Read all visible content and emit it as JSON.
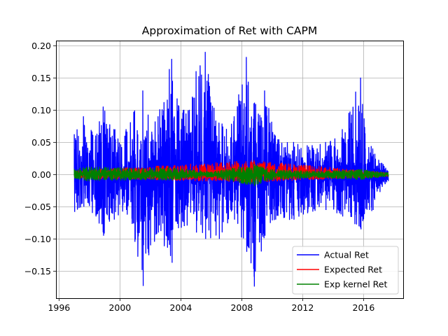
{
  "chart_data": {
    "type": "line",
    "title": "Approximation of Ret with CAPM",
    "xlabel": "",
    "ylabel": "",
    "xlim": [
      1995.8,
      2018.6
    ],
    "ylim": [
      -0.192,
      0.208
    ],
    "x_ticks": [
      1996,
      2000,
      2004,
      2008,
      2012,
      2016
    ],
    "y_ticks": [
      -0.15,
      -0.1,
      -0.05,
      0.0,
      0.05,
      0.1,
      0.15,
      0.2
    ],
    "x_tick_labels": [
      "1996",
      "2000",
      "2004",
      "2008",
      "2012",
      "2016"
    ],
    "y_tick_labels": [
      "−0.15",
      "−0.10",
      "−0.05",
      "0.00",
      "0.05",
      "0.10",
      "0.15",
      "0.20"
    ],
    "grid": true,
    "legend_position": "lower-right",
    "series": [
      {
        "name": "Actual Ret",
        "color": "#0000ff",
        "x_range": [
          1997.0,
          2017.6
        ],
        "envelope": [
          {
            "x": 1997.0,
            "lo": -0.058,
            "hi": 0.062
          },
          {
            "x": 1997.6,
            "lo": -0.05,
            "hi": 0.09
          },
          {
            "x": 1998.4,
            "lo": -0.065,
            "hi": 0.06
          },
          {
            "x": 1998.9,
            "lo": -0.095,
            "hi": 0.105
          },
          {
            "x": 1999.6,
            "lo": -0.07,
            "hi": 0.07
          },
          {
            "x": 2000.4,
            "lo": -0.055,
            "hi": 0.07
          },
          {
            "x": 2001.5,
            "lo": -0.173,
            "hi": 0.13
          },
          {
            "x": 2002.5,
            "lo": -0.09,
            "hi": 0.09
          },
          {
            "x": 2003.4,
            "lo": -0.137,
            "hi": 0.179
          },
          {
            "x": 2004.2,
            "lo": -0.08,
            "hi": 0.1
          },
          {
            "x": 2005.0,
            "lo": -0.09,
            "hi": 0.16
          },
          {
            "x": 2005.6,
            "lo": -0.1,
            "hi": 0.19
          },
          {
            "x": 2006.5,
            "lo": -0.1,
            "hi": 0.08
          },
          {
            "x": 2007.5,
            "lo": -0.07,
            "hi": 0.09
          },
          {
            "x": 2008.3,
            "lo": -0.12,
            "hi": 0.182
          },
          {
            "x": 2008.8,
            "lo": -0.174,
            "hi": 0.11
          },
          {
            "x": 2009.5,
            "lo": -0.095,
            "hi": 0.13
          },
          {
            "x": 2010.2,
            "lo": -0.07,
            "hi": 0.06
          },
          {
            "x": 2011.4,
            "lo": -0.07,
            "hi": 0.05
          },
          {
            "x": 2012.3,
            "lo": -0.06,
            "hi": 0.045
          },
          {
            "x": 2013.5,
            "lo": -0.055,
            "hi": 0.05
          },
          {
            "x": 2014.6,
            "lo": -0.065,
            "hi": 0.07
          },
          {
            "x": 2015.8,
            "lo": -0.085,
            "hi": 0.15
          },
          {
            "x": 2016.6,
            "lo": -0.055,
            "hi": 0.04
          },
          {
            "x": 2017.6,
            "lo": -0.01,
            "hi": 0.005
          }
        ]
      },
      {
        "name": "Expected Ret",
        "color": "#ff0000",
        "x_range": [
          1997.0,
          2017.6
        ],
        "envelope": [
          {
            "x": 1997.0,
            "lo": -0.006,
            "hi": 0.006
          },
          {
            "x": 2008.8,
            "lo": -0.012,
            "hi": 0.022
          },
          {
            "x": 2017.6,
            "lo": -0.003,
            "hi": 0.003
          }
        ]
      },
      {
        "name": "Exp kernel Ret",
        "color": "#008000",
        "x_range": [
          1997.0,
          2017.6
        ],
        "envelope": [
          {
            "x": 1997.0,
            "lo": -0.006,
            "hi": 0.008
          },
          {
            "x": 1997.8,
            "lo": -0.01,
            "hi": 0.012
          },
          {
            "x": 2002.0,
            "lo": -0.008,
            "hi": 0.01
          },
          {
            "x": 2003.2,
            "lo": -0.009,
            "hi": 0.012
          },
          {
            "x": 2006.0,
            "lo": -0.004,
            "hi": 0.004
          },
          {
            "x": 2008.8,
            "lo": -0.018,
            "hi": 0.016
          },
          {
            "x": 2010.0,
            "lo": -0.008,
            "hi": 0.008
          },
          {
            "x": 2013.0,
            "lo": -0.005,
            "hi": 0.005
          },
          {
            "x": 2015.8,
            "lo": -0.008,
            "hi": 0.008
          },
          {
            "x": 2017.6,
            "lo": -0.003,
            "hi": 0.003
          }
        ]
      }
    ]
  }
}
